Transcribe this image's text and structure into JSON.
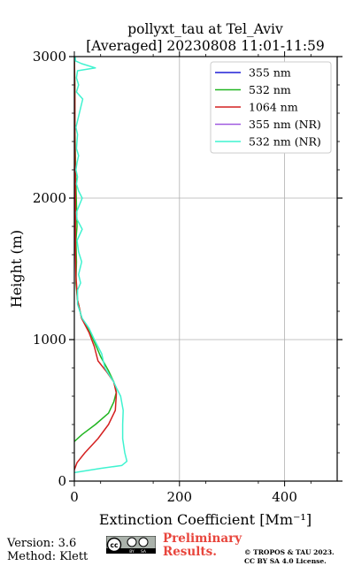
{
  "chart_data": {
    "type": "line",
    "title_line1": "pollyxt_tau at Tel_Aviv",
    "title_line2": "[Averaged] 20230808 11:01-11:59",
    "xlabel": "Extinction Coefficient [Mm⁻¹]",
    "ylabel": "Height (m)",
    "xlim": [
      0,
      500
    ],
    "ylim": [
      0,
      3000
    ],
    "xticks": [
      "0",
      "200",
      "400"
    ],
    "yticks": [
      "0",
      "1000",
      "2000",
      "3000"
    ],
    "grid": true,
    "legend_position": "top-right",
    "series": [
      {
        "name": "355 nm",
        "color": "#1f1fd6",
        "x": [],
        "y": []
      },
      {
        "name": "532 nm",
        "color": "#21b521",
        "x": [
          0,
          15,
          40,
          65,
          75,
          80,
          75,
          65,
          50,
          42,
          30,
          14,
          6,
          3,
          4,
          3,
          5,
          4,
          3,
          2,
          1,
          1,
          0
        ],
        "y": [
          280,
          330,
          400,
          480,
          560,
          630,
          700,
          780,
          880,
          950,
          1050,
          1150,
          1280,
          1400,
          1550,
          1700,
          1800,
          1950,
          2100,
          2300,
          2500,
          2800,
          3000
        ]
      },
      {
        "name": "1064 nm",
        "color": "#d42020",
        "x": [
          0,
          5,
          20,
          45,
          65,
          78,
          80,
          75,
          62,
          45,
          38,
          28,
          14,
          6,
          3,
          2,
          2,
          2,
          1,
          1,
          0
        ],
        "y": [
          80,
          130,
          200,
          300,
          400,
          500,
          620,
          700,
          770,
          850,
          950,
          1050,
          1150,
          1280,
          1450,
          1650,
          1900,
          2150,
          2400,
          2700,
          3000
        ]
      },
      {
        "name": "355 nm (NR)",
        "color": "#a05ae0",
        "x": [],
        "y": []
      },
      {
        "name": "532 nm (NR)",
        "color": "#3ff3d0",
        "x": [
          0,
          50,
          90,
          100,
          96,
          92,
          92,
          93,
          88,
          80,
          75,
          58,
          52,
          38,
          28,
          15,
          6,
          6,
          12,
          8,
          14,
          8,
          5,
          15,
          5,
          4,
          15,
          8,
          4,
          6,
          3,
          5,
          8,
          4,
          6,
          3,
          16,
          4,
          8,
          4,
          6,
          40,
          14,
          2,
          2,
          0
        ],
        "y": [
          60,
          90,
          110,
          140,
          200,
          300,
          400,
          500,
          600,
          660,
          700,
          800,
          900,
          1000,
          1080,
          1150,
          1250,
          1350,
          1400,
          1460,
          1550,
          1620,
          1700,
          1780,
          1850,
          1900,
          2000,
          2050,
          2100,
          2150,
          2200,
          2250,
          2300,
          2350,
          2450,
          2500,
          2700,
          2750,
          2800,
          2850,
          2900,
          2920,
          2950,
          2970,
          2990,
          3000
        ]
      }
    ]
  },
  "footer": {
    "version": "Version: 3.6",
    "method": "Method: Klett",
    "preliminary_line1": "Preliminary",
    "preliminary_line2": "Results.",
    "copyright_line1": "© TROPOS & TAU 2023.",
    "copyright_line2": "CC BY SA 4.0 License."
  },
  "badge": {
    "text_left": "BY",
    "text_right": "SA"
  }
}
